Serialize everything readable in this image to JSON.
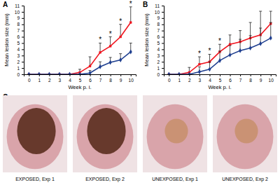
{
  "chart_data": [
    {
      "type": "line",
      "panel": "A",
      "x_label": "Week p. i.",
      "y_label": "Mean lesion size (mm)",
      "categories": [
        "0",
        "1",
        "2",
        "3",
        "4",
        "5",
        "6",
        "7",
        "8",
        "9",
        "10"
      ],
      "ylim": [
        0,
        11
      ],
      "yticks": [
        0,
        1,
        2,
        3,
        4,
        5,
        6,
        7,
        8,
        9,
        10,
        11
      ],
      "series": [
        {
          "color": "#f0141e",
          "marker": "square",
          "values": [
            0,
            0,
            0,
            0,
            0,
            0.3,
            1.3,
            3.5,
            4.5,
            6,
            8.3
          ],
          "errors": [
            0,
            0,
            0,
            0,
            0,
            0.5,
            1.5,
            1.5,
            1.5,
            2,
            2.5
          ]
        },
        {
          "color": "#1f3f8f",
          "marker": "diamond",
          "values": [
            0,
            0,
            0,
            0,
            0,
            0,
            0.2,
            1.2,
            1.9,
            2.3,
            3.6
          ],
          "errors": [
            0,
            0,
            0,
            0,
            0,
            0,
            0.4,
            0.8,
            0.8,
            1,
            1.4
          ]
        }
      ],
      "annotations": [
        {
          "text": "*",
          "category": "7"
        },
        {
          "text": "*",
          "category": "8"
        },
        {
          "text": "*",
          "category": "9"
        },
        {
          "text": "*",
          "category": "10"
        }
      ]
    },
    {
      "type": "line",
      "panel": "B",
      "x_label": "Week p. i.",
      "y_label": "Mean lesion size (mm)",
      "categories": [
        "0",
        "1",
        "2",
        "3",
        "4",
        "5",
        "6",
        "7",
        "8",
        "9",
        "10"
      ],
      "ylim": [
        0,
        11
      ],
      "yticks": [
        0,
        1,
        2,
        3,
        4,
        5,
        6,
        7,
        8,
        9,
        10,
        11
      ],
      "series": [
        {
          "color": "#f0141e",
          "marker": "square",
          "values": [
            0,
            0,
            0.3,
            1.6,
            2,
            3.6,
            4.8,
            5.2,
            5.8,
            6.3,
            8.1
          ],
          "errors": [
            0,
            0,
            0.8,
            1.2,
            1.2,
            1.2,
            1.5,
            1.8,
            2.5,
            3.8,
            2
          ]
        },
        {
          "color": "#1f3f8f",
          "marker": "diamond",
          "values": [
            0,
            0,
            0,
            0.4,
            0.8,
            2.2,
            3.1,
            3.8,
            4.2,
            4.9,
            5.8
          ],
          "errors": [
            0,
            0,
            0,
            0.8,
            1.2,
            1.5,
            1.5,
            1.8,
            2,
            2.5,
            2.5
          ]
        }
      ],
      "annotations": [
        {
          "text": "*",
          "category": "3"
        },
        {
          "text": "*",
          "category": "4"
        },
        {
          "text": "*",
          "category": "5"
        }
      ]
    }
  ],
  "panel_c": {
    "label": "C",
    "images": [
      {
        "caption": "EXPOSED, Exp 1"
      },
      {
        "caption": "EXPOSED, Exp 2"
      },
      {
        "caption": "UNEXPOSED, Exp 1"
      },
      {
        "caption": "UNEXPOSED, Exp 2"
      }
    ]
  }
}
